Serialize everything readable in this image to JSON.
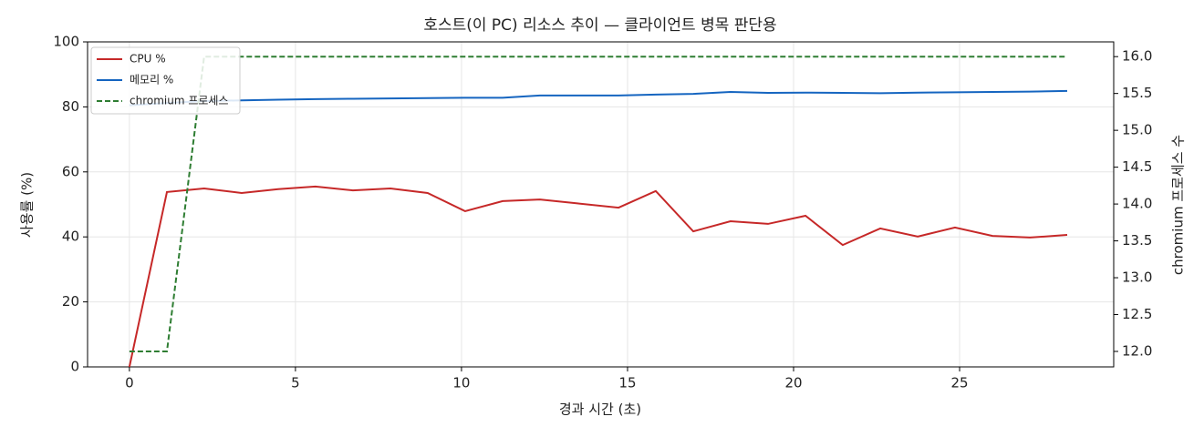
{
  "chart_data": {
    "type": "line",
    "title": "호스트(이 PC) 리소스 추이 — 클라이언트 병목 판단용",
    "x_label": "경과 시간 (초)",
    "y_label": "사용률 (%)",
    "y2_label": "chromium 프로세스 수",
    "x": [
      0,
      1.13,
      2.25,
      3.38,
      4.48,
      5.6,
      6.73,
      7.86,
      8.98,
      10.11,
      11.24,
      12.36,
      13.49,
      14.73,
      15.85,
      16.98,
      18.1,
      19.23,
      20.36,
      21.48,
      22.61,
      23.74,
      24.86,
      25.99,
      27.12,
      28.24
    ],
    "series": [
      {
        "name": "CPU %",
        "color": "#c62828",
        "style": "solid",
        "values": [
          0,
          53.8,
          54.9,
          53.5,
          54.7,
          55.5,
          54.3,
          54.9,
          53.5,
          47.9,
          51.0,
          51.5,
          50.3,
          49.0,
          54.1,
          41.7,
          44.8,
          44.0,
          46.5,
          37.5,
          42.6,
          40.1,
          42.9,
          40.3,
          39.8,
          40.6
        ]
      },
      {
        "name": "메모리 %",
        "color": "#1565c0",
        "style": "solid",
        "values": [
          80.5,
          81.2,
          81.8,
          82.0,
          82.2,
          82.4,
          82.5,
          82.6,
          82.7,
          82.8,
          82.8,
          83.5,
          83.5,
          83.5,
          83.8,
          84.0,
          84.6,
          84.3,
          84.4,
          84.3,
          84.2,
          84.4,
          84.5,
          84.6,
          84.7,
          84.9
        ]
      },
      {
        "name": "chromium 프로세스",
        "color": "#2e7d32",
        "style": "dashed",
        "axis": "y2",
        "values": [
          12,
          12,
          16,
          16,
          16,
          16,
          16,
          16,
          16,
          16,
          16,
          16,
          16,
          16,
          16,
          16,
          16,
          16,
          16,
          16,
          16,
          16,
          16,
          16,
          16,
          16
        ]
      }
    ],
    "xlim": [
      -1.26,
      29.64
    ],
    "xticks": [
      0,
      5,
      10,
      15,
      20,
      25
    ],
    "ylim": [
      0,
      100
    ],
    "yticks": [
      0,
      20,
      40,
      60,
      80,
      100
    ],
    "y2lim": [
      11.79,
      16.2
    ],
    "y2ticks": [
      {
        "value": 12,
        "label": "12.0"
      },
      12.5,
      {
        "value": 13,
        "label": "13.0"
      },
      13.5,
      {
        "value": 14,
        "label": "14.0"
      },
      14.5,
      {
        "value": 15,
        "label": "15.0"
      },
      15.5,
      {
        "value": 16,
        "label": "16.0"
      }
    ],
    "grid": true,
    "legend": "upper-left"
  }
}
